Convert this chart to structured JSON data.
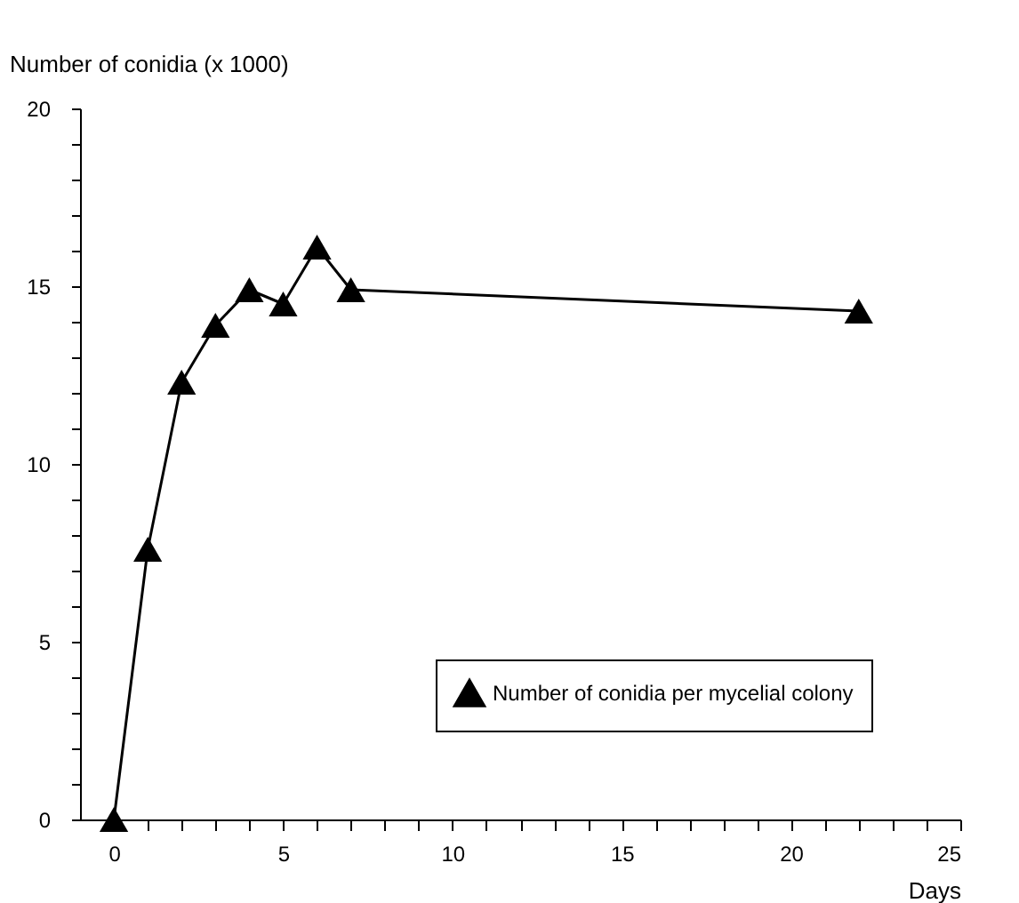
{
  "chart_data": {
    "type": "line",
    "ylabel": "Number of conidia (x 1000)",
    "xlabel": "Days",
    "x": [
      0,
      1,
      2,
      3,
      4,
      5,
      6,
      7,
      22
    ],
    "series": [
      {
        "name": "Number of conidia per mycelial colony",
        "color": "#000000",
        "values": [
          0,
          7.6,
          12.3,
          13.9,
          14.9,
          14.5,
          16.1,
          14.9,
          14.3
        ]
      }
    ],
    "xlim": [
      -1,
      25
    ],
    "xticks": [
      0,
      {
        "value": 1,
        "label": null
      },
      {
        "value": 2,
        "label": null
      },
      {
        "value": 3,
        "label": null
      },
      {
        "value": 4,
        "label": null
      },
      5,
      {
        "value": 6,
        "label": null
      },
      {
        "value": 7,
        "label": null
      },
      {
        "value": 8,
        "label": null
      },
      {
        "value": 9,
        "label": null
      },
      10,
      {
        "value": 11,
        "label": null
      },
      {
        "value": 12,
        "label": null
      },
      {
        "value": 13,
        "label": null
      },
      {
        "value": 14,
        "label": null
      },
      15,
      {
        "value": 16,
        "label": null
      },
      {
        "value": 17,
        "label": null
      },
      {
        "value": 18,
        "label": null
      },
      {
        "value": 19,
        "label": null
      },
      20,
      {
        "value": 21,
        "label": null
      },
      {
        "value": 22,
        "label": null
      },
      {
        "value": 23,
        "label": null
      },
      {
        "value": 24,
        "label": null
      },
      25
    ],
    "ylim": [
      0,
      20
    ],
    "yticks": [
      0,
      {
        "value": 1,
        "label": null
      },
      {
        "value": 2,
        "label": null
      },
      {
        "value": 3,
        "label": null
      },
      {
        "value": 4,
        "label": null
      },
      5,
      {
        "value": 6,
        "label": null
      },
      {
        "value": 7,
        "label": null
      },
      {
        "value": 8,
        "label": null
      },
      {
        "value": 9,
        "label": null
      },
      10,
      {
        "value": 11,
        "label": null
      },
      {
        "value": 12,
        "label": null
      },
      {
        "value": 13,
        "label": null
      },
      {
        "value": 14,
        "label": null
      },
      15,
      {
        "value": 16,
        "label": null
      },
      {
        "value": 17,
        "label": null
      },
      {
        "value": 18,
        "label": null
      },
      {
        "value": 19,
        "label": null
      },
      20
    ],
    "marker": "triangle",
    "line_style": "solid",
    "grid": false,
    "legend": "bottom right"
  }
}
